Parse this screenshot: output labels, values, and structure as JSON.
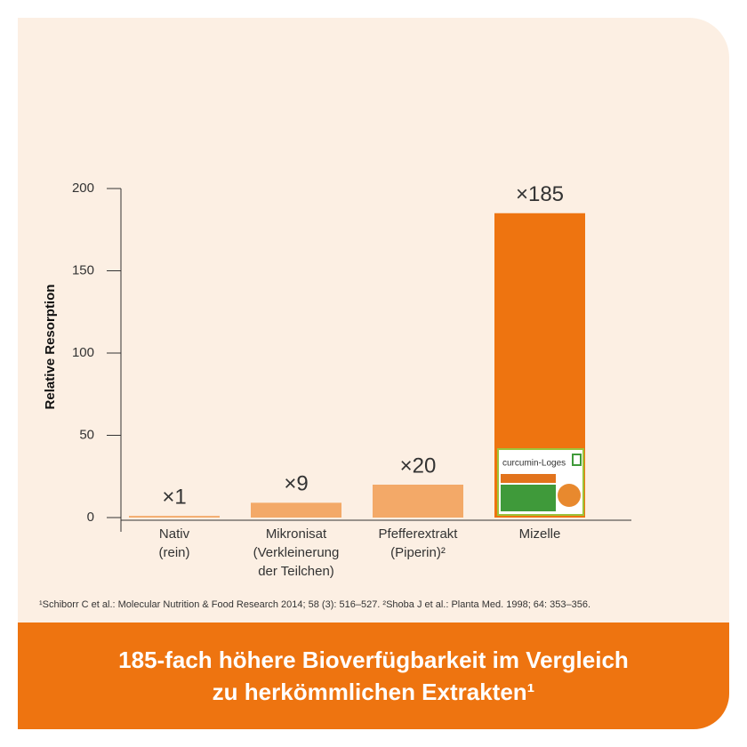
{
  "chart_data": {
    "type": "bar",
    "y_label": "Relative Resorption",
    "categories": [
      "Nativ\n(rein)",
      "Mikronisat\n(Verkleinerung\nder Teilchen)",
      "Pfefferextrakt\n(Piperin)²",
      "Mizelle"
    ],
    "values": [
      1,
      9,
      20,
      185
    ],
    "value_labels": [
      "×1",
      "×9",
      "×20",
      "×185"
    ],
    "colors": [
      "#f3a968",
      "#f3a968",
      "#f3a968",
      "#ee7410"
    ],
    "ylim": [
      0,
      200
    ],
    "yticks": [
      0,
      50,
      100,
      150,
      200
    ],
    "product_name": "curcumin-Loges",
    "footnote": "¹Schiborr C et al.: Molecular Nutrition & Food Research 2014; 58 (3): 516–527. ²Shoba J et al.: Planta Med. 1998; 64: 353–356.",
    "headline": "185-fach höhere Bioverfügbarkeit im Vergleich\nzu herkömmlichen Extrakten¹"
  }
}
